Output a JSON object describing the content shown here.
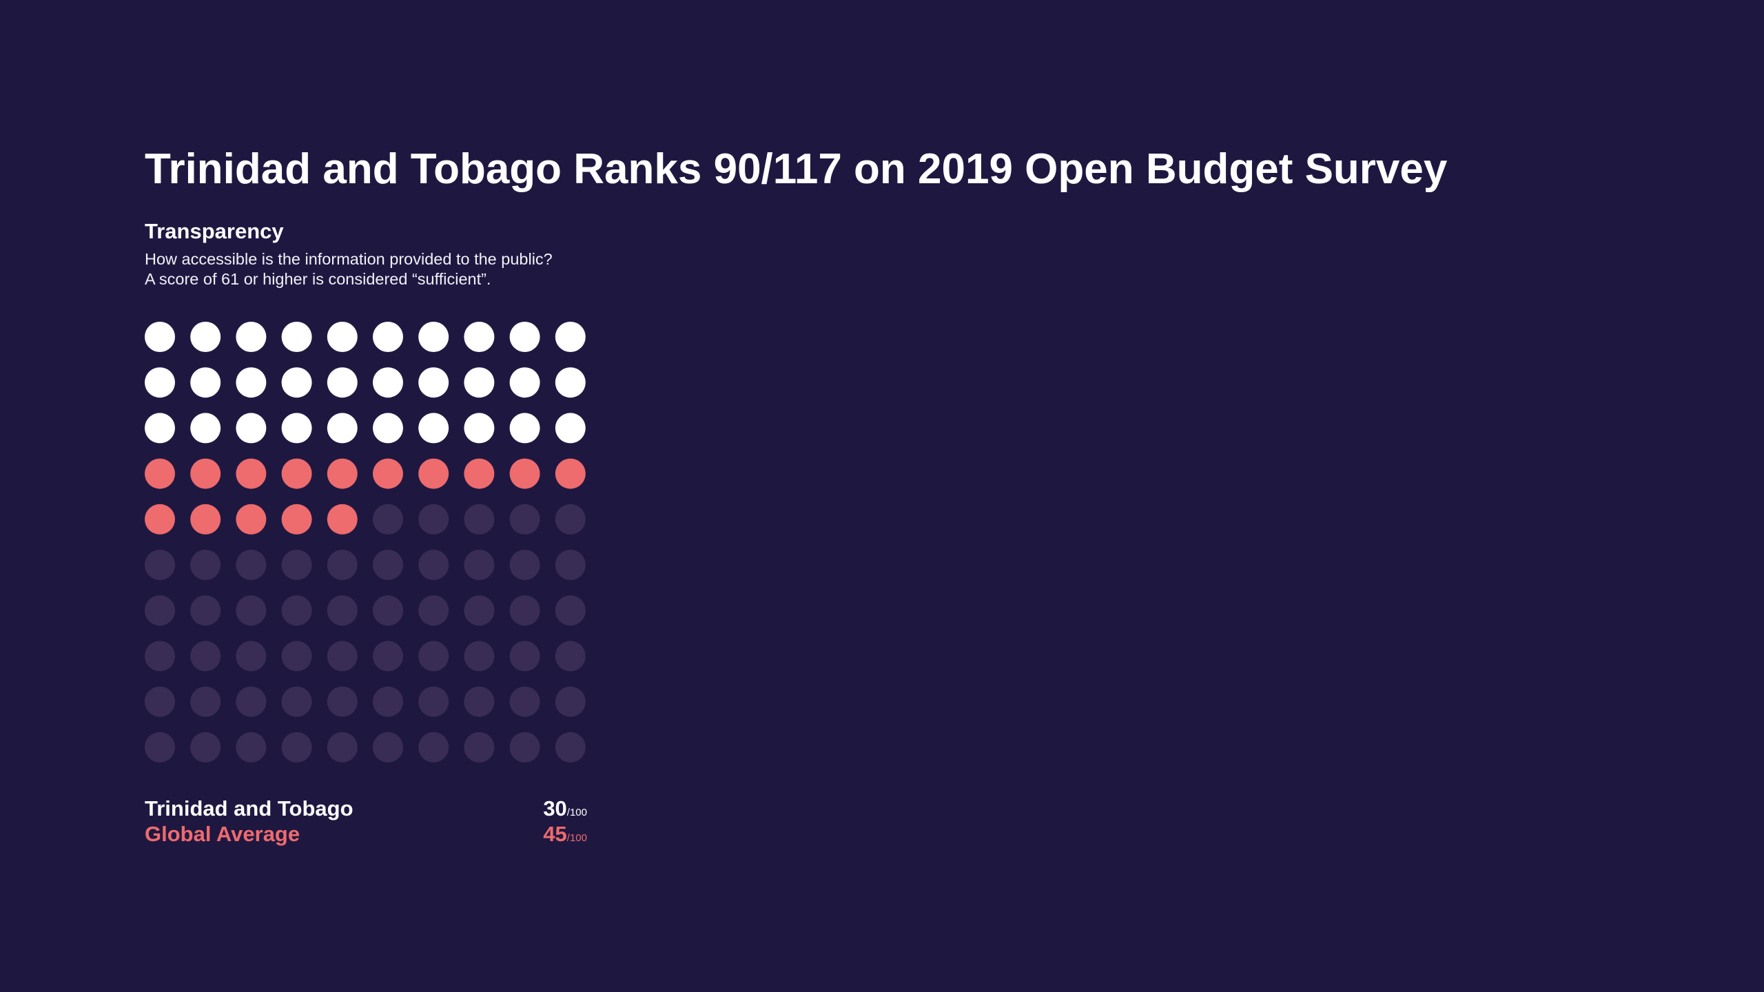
{
  "title": "Trinidad and Tobago Ranks 90/117 on 2019 Open Budget Survey",
  "section": {
    "title": "Transparency",
    "description_line1": "How accessible is the information provided to the public?",
    "description_line2": "A score of 61 or higher is considered “sufficient”."
  },
  "legend": {
    "country": {
      "label": "Trinidad and Tobago",
      "score": "30",
      "max": "/100"
    },
    "global": {
      "label": "Global Average",
      "score": "45",
      "max": "/100"
    }
  },
  "colors": {
    "background": "#1e1841",
    "country": "#ffffff",
    "global": "#ee6b6e",
    "empty": "#3a2d55"
  },
  "chart_data": {
    "type": "waffle",
    "total": 100,
    "grid": [
      10,
      10
    ],
    "series": [
      {
        "name": "Trinidad and Tobago",
        "value": 30
      },
      {
        "name": "Global Average",
        "value": 45
      }
    ]
  }
}
